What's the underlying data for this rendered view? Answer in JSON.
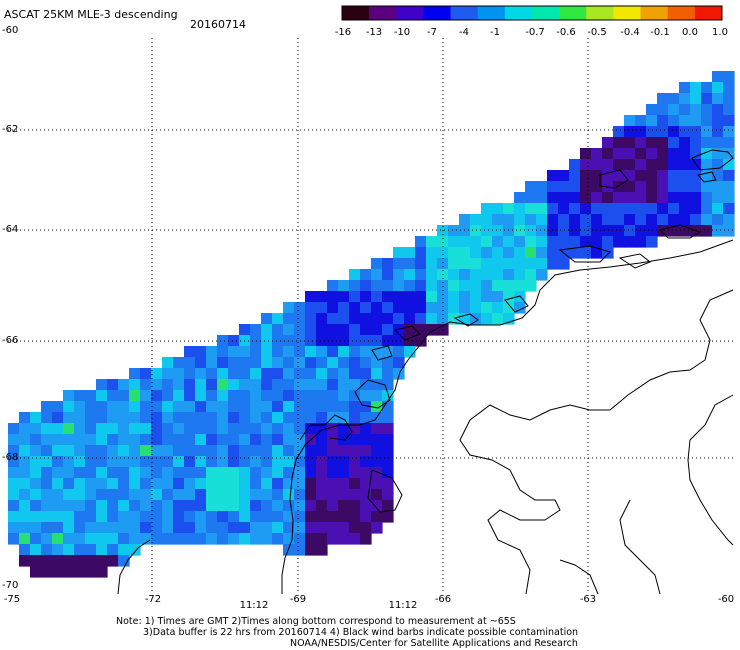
{
  "title": {
    "product": "ASCAT 25KM MLE-3 descending",
    "date": "20160714"
  },
  "colorbar": {
    "labels": [
      "-16",
      "-13",
      "-10",
      "-7",
      "-4",
      "-1",
      "-0.7",
      "-0.6",
      "-0.5",
      "-0.4",
      "-0.1",
      "0.0",
      "1.0"
    ],
    "colors": [
      "#2a0012",
      "#5a0080",
      "#4000c8",
      "#0000f0",
      "#1e5cf0",
      "#0094f0",
      "#00d8e8",
      "#00e8b0",
      "#30e840",
      "#a8e820",
      "#f0e800",
      "#f0a000",
      "#f06000",
      "#f01800"
    ]
  },
  "axes": {
    "lat_labels": [
      "-60",
      "-62",
      "-64",
      "-66",
      "-68",
      "-70"
    ],
    "lon_labels": [
      "-75",
      "-72",
      "-69",
      "-66",
      "-63",
      "-60"
    ],
    "time_labels": [
      "11:12",
      "11:12"
    ],
    "time_color": "#cc2200"
  },
  "notes": {
    "line1": "Note: 1) Times are GMT 2)Times along bottom correspond to measurement at ~65S",
    "line2": "3)Data buffer is 22 hrs from 20160714 4) Black wind barbs indicate possible contamination",
    "line3": "NOAA/NESDIS/Center for Satellite Applications and Research"
  },
  "field_colors": {
    "dark_purple": "#3c0a64",
    "purple": "#4a10b4",
    "navy": "#1010e0",
    "blue": "#1c50ee",
    "mid_blue": "#1e78f0",
    "light_blue": "#1e9cf4",
    "cyan": "#10c8ee",
    "aqua": "#18e0d8",
    "green": "#28e070"
  }
}
